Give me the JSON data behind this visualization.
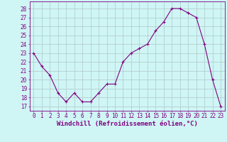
{
  "x": [
    0,
    1,
    2,
    3,
    4,
    5,
    6,
    7,
    8,
    9,
    10,
    11,
    12,
    13,
    14,
    15,
    16,
    17,
    18,
    19,
    20,
    21,
    22,
    23
  ],
  "y": [
    23,
    21.5,
    20.5,
    18.5,
    17.5,
    18.5,
    17.5,
    17.5,
    18.5,
    19.5,
    19.5,
    22,
    23,
    23.5,
    24,
    25.5,
    26.5,
    28,
    28,
    27.5,
    27,
    24,
    20,
    17
  ],
  "line_color": "#800080",
  "marker": "+",
  "markersize": 3,
  "linewidth": 0.8,
  "bg_color": "#cff5f5",
  "grid_color": "#b0c8c8",
  "xlabel": "Windchill (Refroidissement éolien,°C)",
  "xlabel_fontsize": 6.5,
  "ylabel_ticks": [
    17,
    18,
    19,
    20,
    21,
    22,
    23,
    24,
    25,
    26,
    27,
    28
  ],
  "ylim": [
    16.5,
    28.8
  ],
  "xlim": [
    -0.5,
    23.5
  ],
  "tick_fontsize": 5.5,
  "tick_color": "#800080"
}
